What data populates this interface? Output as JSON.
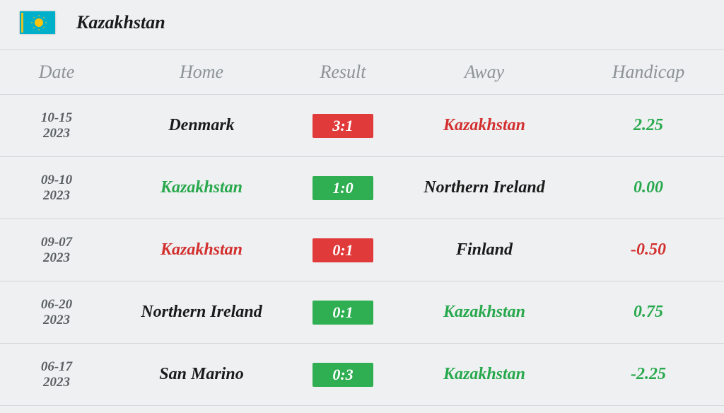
{
  "header": {
    "country_name": "Kazakhstan",
    "flag": {
      "bg": "#00AFCA",
      "sun": "#FEC50C",
      "ornament": "#FEC50C"
    }
  },
  "columns": {
    "date": "Date",
    "home": "Home",
    "result": "Result",
    "away": "Away",
    "handicap": "Handicap"
  },
  "rows": [
    {
      "date_md": "10-15",
      "date_y": "2023",
      "home": "Denmark",
      "home_color": "team-black",
      "result": "3:1",
      "result_color": "result-red",
      "away": "Kazakhstan",
      "away_color": "team-red",
      "handicap": "2.25",
      "handicap_color": "hc-green"
    },
    {
      "date_md": "09-10",
      "date_y": "2023",
      "home": "Kazakhstan",
      "home_color": "team-green",
      "result": "1:0",
      "result_color": "result-green",
      "away": "Northern Ireland",
      "away_color": "team-black",
      "handicap": "0.00",
      "handicap_color": "hc-green"
    },
    {
      "date_md": "09-07",
      "date_y": "2023",
      "home": "Kazakhstan",
      "home_color": "team-red",
      "result": "0:1",
      "result_color": "result-red",
      "away": "Finland",
      "away_color": "team-black",
      "handicap": "-0.50",
      "handicap_color": "hc-red"
    },
    {
      "date_md": "06-20",
      "date_y": "2023",
      "home": "Northern Ireland",
      "home_color": "team-black",
      "result": "0:1",
      "result_color": "result-green",
      "away": "Kazakhstan",
      "away_color": "team-green",
      "handicap": "0.75",
      "handicap_color": "hc-green"
    },
    {
      "date_md": "06-17",
      "date_y": "2023",
      "home": "San Marino",
      "home_color": "team-black",
      "result": "0:3",
      "result_color": "result-green",
      "away": "Kazakhstan",
      "away_color": "team-green",
      "handicap": "-2.25",
      "handicap_color": "hc-green"
    }
  ],
  "colors": {
    "bg": "#eef0f1",
    "border": "#d4d7d9",
    "header_text": "#8c9296",
    "text_black": "#1a1a1a",
    "text_green": "#27a84c",
    "text_red": "#d32f2f",
    "badge_red": "#e03a3a",
    "badge_green": "#2fae52"
  }
}
